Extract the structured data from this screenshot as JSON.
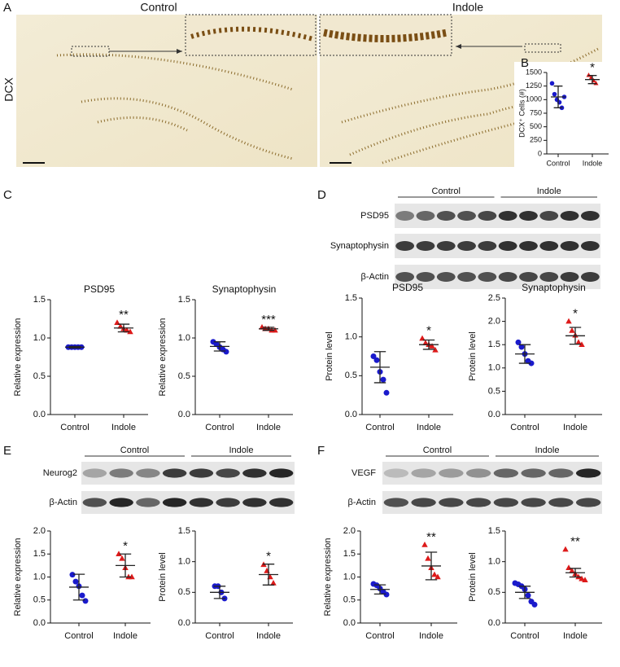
{
  "figure": {
    "panels": [
      "A",
      "B",
      "C",
      "D",
      "E",
      "F"
    ],
    "micrograph_titles": [
      "Control",
      "Indole"
    ],
    "micrograph_label": "DCX",
    "blots": {
      "D": {
        "groups": [
          "Control",
          "Indole"
        ],
        "rows": [
          "PSD95",
          "Synaptophysin",
          "β-Actin"
        ]
      },
      "E": {
        "groups": [
          "Control",
          "Indole"
        ],
        "rows": [
          "Neurog2",
          "β-Actin"
        ]
      },
      "F": {
        "groups": [
          "Control",
          "Indole"
        ],
        "rows": [
          "VEGF",
          "β-Actin"
        ]
      }
    }
  },
  "chart_data": [
    {
      "type": "dot",
      "ylabel": "DCX⁺ Cells (#)",
      "categories": [
        "Control",
        "Indole"
      ],
      "colors": [
        "#1a1acc",
        "#dd1a1a"
      ],
      "values": [
        [
          1300,
          1100,
          1000,
          950,
          850,
          1050
        ],
        [
          1450,
          1400,
          1350,
          1300
        ]
      ],
      "means": [
        1050,
        1370
      ],
      "errors": [
        200,
        75
      ],
      "annotation": "*",
      "ylim": [
        0,
        1500
      ],
      "yticks": [
        0,
        250,
        500,
        750,
        1000,
        1250,
        1500
      ]
    },
    {
      "type": "dot",
      "title": "PSD95",
      "ylabel": "Relative expression",
      "categories": [
        "Control",
        "Indole"
      ],
      "colors": [
        "#1a1acc",
        "#dd1a1a"
      ],
      "values": [
        [
          0.88,
          0.88,
          0.88,
          0.88,
          0.88
        ],
        [
          1.2,
          1.15,
          1.12,
          1.1,
          1.08
        ]
      ],
      "means": [
        0.88,
        1.13
      ],
      "errors": [
        0.01,
        0.05
      ],
      "annotation": "**",
      "ylim": [
        0,
        1.5
      ],
      "yticks": [
        {
          "value": 0,
          "label": "0.0"
        },
        0.5,
        {
          "value": 1,
          "label": "1.0"
        },
        1.5
      ]
    },
    {
      "type": "dot",
      "title": "Synaptophysin",
      "ylabel": "Relative expression",
      "categories": [
        "Control",
        "Indole"
      ],
      "colors": [
        "#1a1acc",
        "#dd1a1a"
      ],
      "values": [
        [
          0.95,
          0.92,
          0.88,
          0.85,
          0.82
        ],
        [
          1.14,
          1.12,
          1.12,
          1.1,
          1.1
        ]
      ],
      "means": [
        0.89,
        1.12
      ],
      "errors": [
        0.06,
        0.02
      ],
      "annotation": "***",
      "ylim": [
        0,
        1.5
      ],
      "yticks": [
        {
          "value": 0,
          "label": "0.0"
        },
        0.5,
        {
          "value": 1,
          "label": "1.0"
        },
        1.5
      ]
    },
    {
      "type": "dot",
      "title": "PSD95",
      "ylabel": "Protein level",
      "categories": [
        "Control",
        "Indole"
      ],
      "colors": [
        "#1a1acc",
        "#dd1a1a"
      ],
      "values": [
        [
          0.75,
          0.7,
          0.55,
          0.45,
          0.28
        ],
        [
          0.98,
          0.92,
          0.9,
          0.88,
          0.83
        ]
      ],
      "means": [
        0.61,
        0.9
      ],
      "errors": [
        0.2,
        0.06
      ],
      "annotation": "*",
      "ylim": [
        0,
        1.5
      ],
      "yticks": [
        {
          "value": 0,
          "label": "0.0"
        },
        0.5,
        {
          "value": 1,
          "label": "1.0"
        },
        1.5
      ]
    },
    {
      "type": "dot",
      "title": "Synaptophysin",
      "ylabel": "Protein level",
      "categories": [
        "Control",
        "Indole"
      ],
      "colors": [
        "#1a1acc",
        "#dd1a1a"
      ],
      "values": [
        [
          1.55,
          1.45,
          1.3,
          1.15,
          1.1
        ],
        [
          2.0,
          1.8,
          1.7,
          1.55,
          1.5
        ]
      ],
      "means": [
        1.3,
        1.69
      ],
      "errors": [
        0.2,
        0.18
      ],
      "annotation": "*",
      "ylim": [
        0,
        2.5
      ],
      "yticks": [
        {
          "value": 0,
          "label": "0.0"
        },
        0.5,
        {
          "value": 1,
          "label": "1.0"
        },
        1.5,
        {
          "value": 2,
          "label": "2.0"
        },
        2.5
      ]
    },
    {
      "type": "dot",
      "ylabel": "Relative expression",
      "categories": [
        "Control",
        "Indole"
      ],
      "colors": [
        "#1a1acc",
        "#dd1a1a"
      ],
      "values": [
        [
          1.05,
          0.9,
          0.8,
          0.6,
          0.48
        ],
        [
          1.5,
          1.4,
          1.2,
          1.0,
          1.0
        ]
      ],
      "means": [
        0.78,
        1.25
      ],
      "errors": [
        0.28,
        0.25
      ],
      "annotation": "*",
      "ylim": [
        0,
        2
      ],
      "yticks": [
        {
          "value": 0,
          "label": "0.0"
        },
        0.5,
        {
          "value": 1,
          "label": "1.0"
        },
        1.5,
        {
          "value": 2,
          "label": "2.0"
        }
      ]
    },
    {
      "type": "dot",
      "ylabel": "Protein level",
      "categories": [
        "Control",
        "Indole"
      ],
      "colors": [
        "#1a1acc",
        "#dd1a1a"
      ],
      "values": [
        [
          0.6,
          0.6,
          0.5,
          0.4
        ],
        [
          0.95,
          0.85,
          0.75,
          0.65
        ]
      ],
      "means": [
        0.5,
        0.79
      ],
      "errors": [
        0.1,
        0.17
      ],
      "annotation": "*",
      "ylim": [
        0,
        1.5
      ],
      "yticks": [
        {
          "value": 0,
          "label": "0.0"
        },
        0.5,
        {
          "value": 1,
          "label": "1.0"
        },
        1.5
      ]
    },
    {
      "type": "dot",
      "ylabel": "Relative expression",
      "categories": [
        "Control",
        "Indole"
      ],
      "colors": [
        "#1a1acc",
        "#dd1a1a"
      ],
      "values": [
        [
          0.85,
          0.82,
          0.75,
          0.68,
          0.62
        ],
        [
          1.7,
          1.4,
          1.2,
          1.05,
          1.0
        ]
      ],
      "means": [
        0.73,
        1.24
      ],
      "errors": [
        0.1,
        0.3
      ],
      "annotation": "**",
      "ylim": [
        0,
        2
      ],
      "yticks": [
        {
          "value": 0,
          "label": "0.0"
        },
        0.5,
        {
          "value": 1,
          "label": "1.0"
        },
        1.5,
        {
          "value": 2,
          "label": "2.0"
        }
      ]
    },
    {
      "type": "dot",
      "ylabel": "Protein level",
      "categories": [
        "Control",
        "Indole"
      ],
      "colors": [
        "#1a1acc",
        "#dd1a1a"
      ],
      "values": [
        [
          0.65,
          0.63,
          0.6,
          0.55,
          0.45,
          0.35,
          0.3
        ],
        [
          1.2,
          0.9,
          0.85,
          0.8,
          0.75,
          0.72,
          0.7
        ]
      ],
      "means": [
        0.5,
        0.82
      ],
      "errors": [
        0.1,
        0.07
      ],
      "annotation": "**",
      "ylim": [
        0,
        1.5
      ],
      "yticks": [
        {
          "value": 0,
          "label": "0.0"
        },
        0.5,
        {
          "value": 1,
          "label": "1.0"
        },
        1.5
      ]
    }
  ]
}
